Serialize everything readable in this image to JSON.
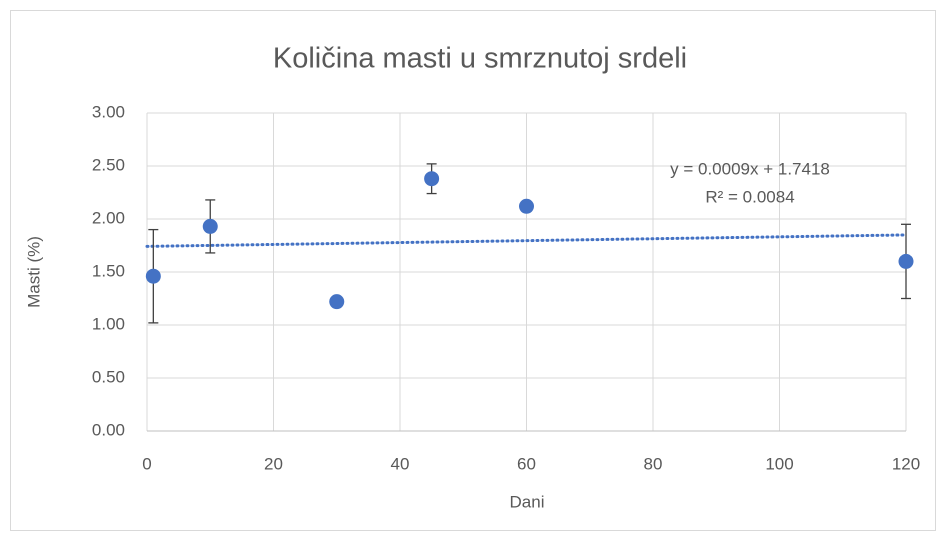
{
  "chart_data": {
    "type": "scatter",
    "title": "Količina masti u smrznutoj srdeli",
    "x_label": "Dani",
    "y_label": "Masti (%)",
    "x": [
      1,
      10,
      30,
      45,
      60,
      120
    ],
    "series": [
      {
        "color": "#4472c4",
        "values": [
          1.46,
          1.93,
          1.22,
          2.38,
          2.12,
          1.6
        ],
        "errors": [
          0.44,
          0.25,
          null,
          0.14,
          null,
          0.35
        ]
      }
    ],
    "trendline": {
      "slope": 0.0009,
      "intercept": 1.7418,
      "label": "y = 0.0009x + 1.7418",
      "r2_label": "R² = 0.0084",
      "color": "#4472c4"
    },
    "xlim": [
      0,
      120
    ],
    "xticks": [
      0,
      20,
      40,
      60,
      80,
      100,
      120
    ],
    "ylim": [
      0,
      3
    ],
    "yticks": [
      {
        "value": 0,
        "label": "0.00"
      },
      {
        "value": 0.5,
        "label": "0.50"
      },
      {
        "value": 1,
        "label": "1.00"
      },
      {
        "value": 1.5,
        "label": "1.50"
      },
      {
        "value": 2,
        "label": "2.00"
      },
      {
        "value": 2.5,
        "label": "2.50"
      },
      {
        "value": 3,
        "label": "3.00"
      }
    ],
    "grid": true
  }
}
